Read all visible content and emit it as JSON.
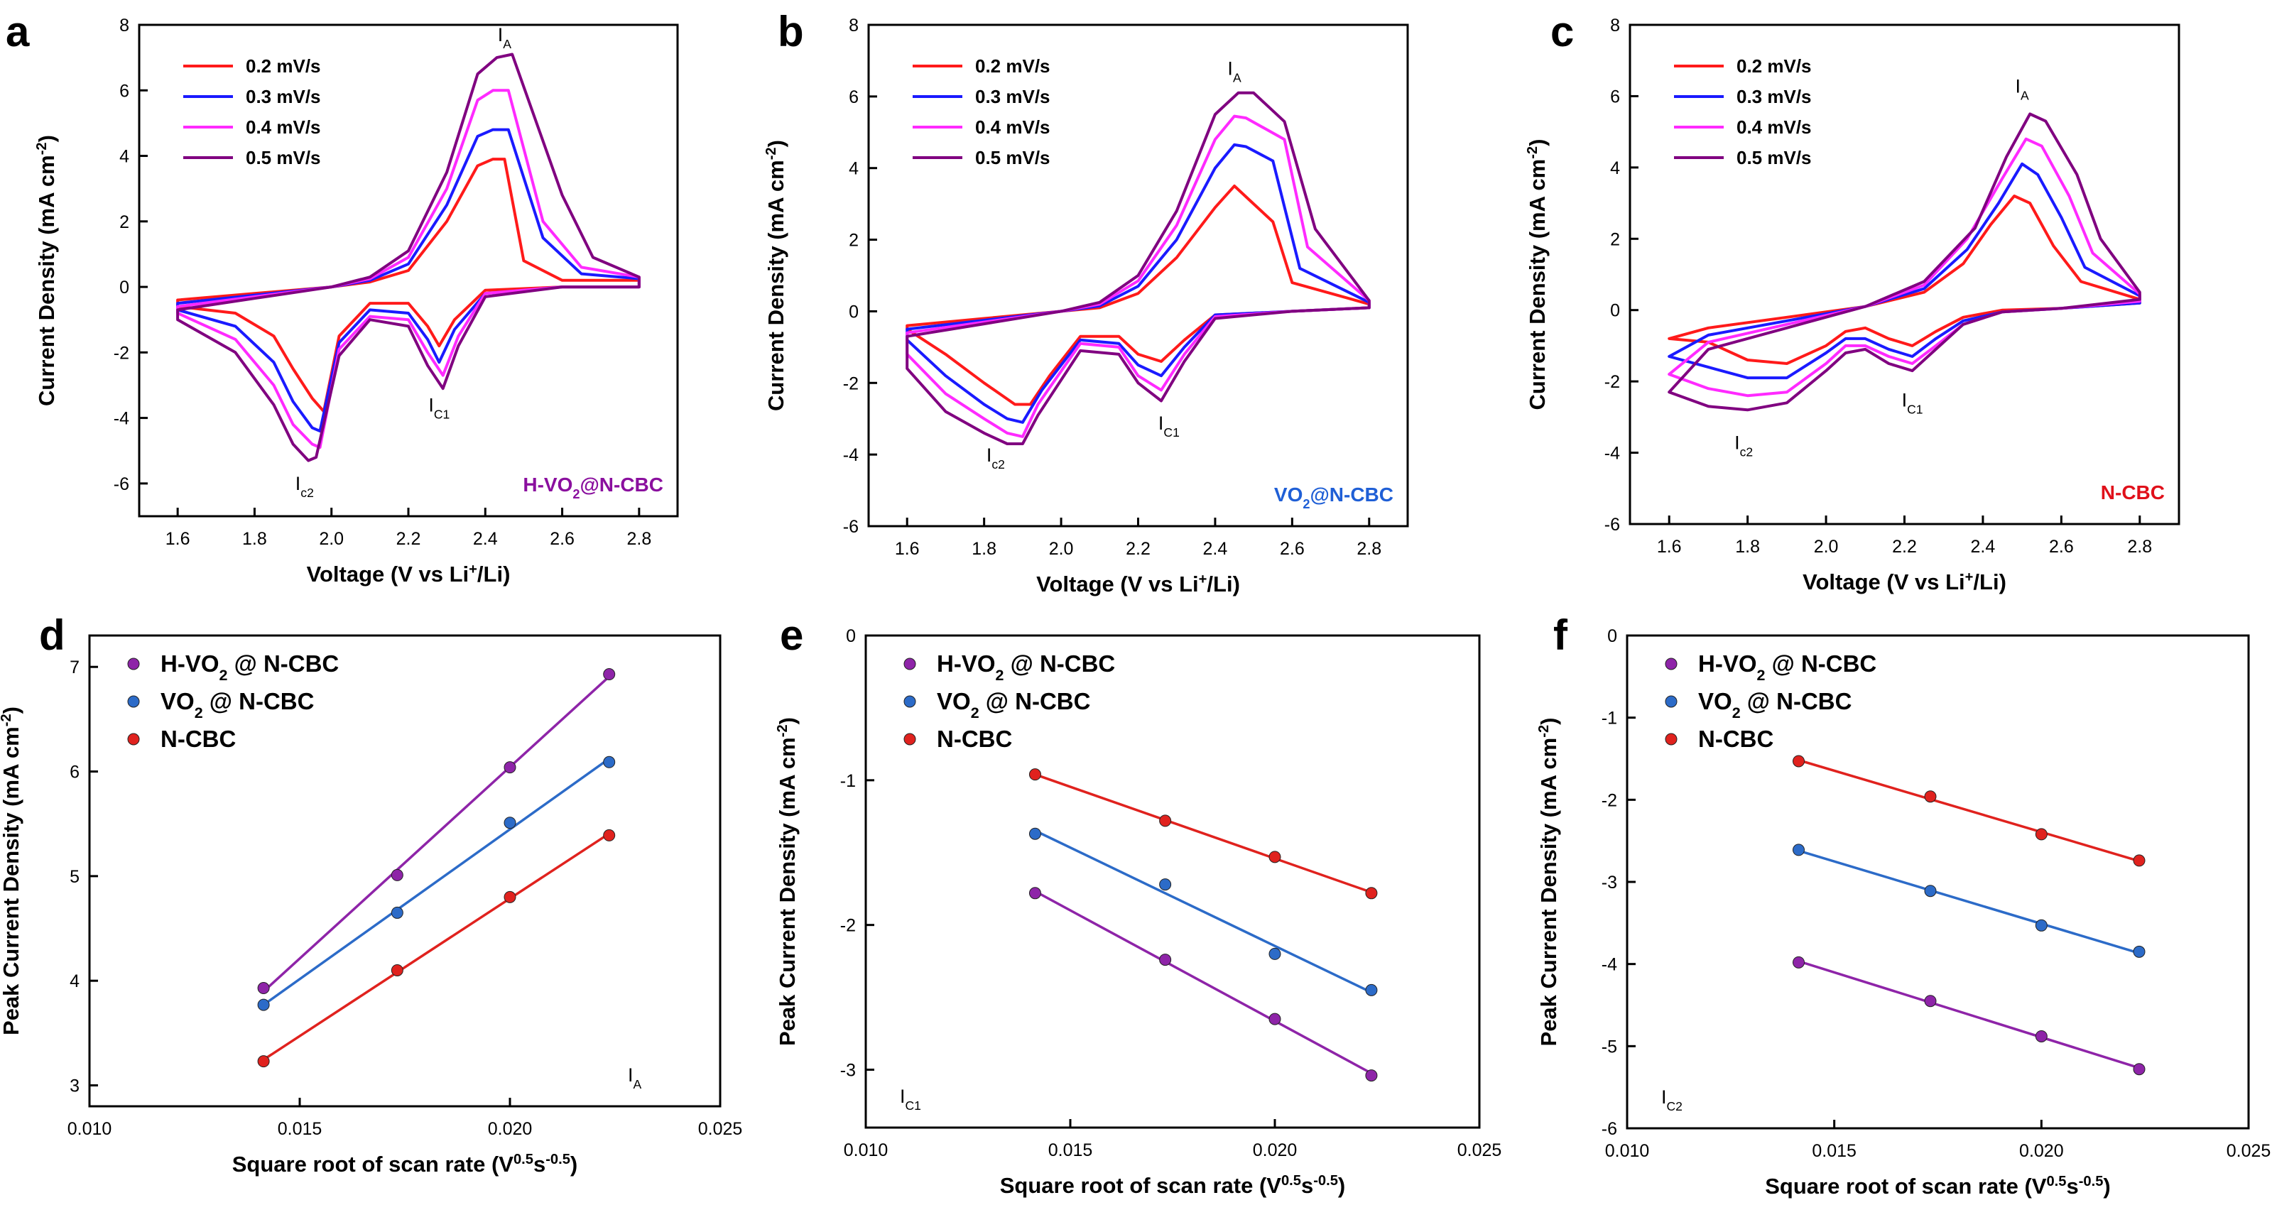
{
  "colors": {
    "scan_0_2": "#ff1a1a",
    "scan_0_3": "#1a1aff",
    "scan_0_4": "#ff2aff",
    "scan_0_5": "#800080",
    "h_vo2": "#8e24a8",
    "vo2": "#2c6bc8",
    "ncbc": "#e0221e",
    "h_vo2_tag": "#8a0f9e",
    "vo2_tag": "#1f5fd6",
    "ncbc_tag": "#e0101a"
  },
  "chart_data": [
    {
      "panel": "a",
      "type": "line",
      "xlabel": "Voltage (V vs Li+/Li)",
      "ylabel": "Current Density (mA cm-2)",
      "xlim": [
        1.5,
        2.9
      ],
      "ylim": [
        -7,
        8
      ],
      "xticks": [
        "1.6",
        "1.8",
        "2.0",
        "2.2",
        "2.4",
        "2.6",
        "2.8"
      ],
      "yticks": [
        "-6",
        "-4",
        "-2",
        "0",
        "2",
        "4",
        "6",
        "8"
      ],
      "legend": [
        "0.2 mV/s",
        "0.3 mV/s",
        "0.4 mV/s",
        "0.5 mV/s"
      ],
      "tag": "H-VO2@N-CBC",
      "peaks": [
        {
          "label": "I",
          "sub": "A",
          "x": 2.45,
          "y": 7.5
        },
        {
          "label": "I",
          "sub": "C1",
          "x": 2.28,
          "y": -3.8
        },
        {
          "label": "I",
          "sub": "c2",
          "x": 1.93,
          "y": -6.2
        }
      ],
      "series": [
        {
          "name": "0.2 mV/s",
          "x": [
            1.6,
            1.75,
            1.85,
            1.9,
            1.95,
            1.98,
            2.02,
            2.1,
            2.2,
            2.25,
            2.28,
            2.32,
            2.4,
            2.6,
            2.8,
            2.8,
            2.6,
            2.5,
            2.45,
            2.42,
            2.38,
            2.3,
            2.2,
            2.1,
            2.0,
            1.8,
            1.6
          ],
          "y": [
            -0.6,
            -0.8,
            -1.5,
            -2.5,
            -3.4,
            -3.8,
            -1.5,
            -0.5,
            -0.5,
            -1.2,
            -1.8,
            -1.0,
            -0.1,
            0,
            0,
            0.2,
            0.2,
            0.8,
            3.9,
            3.9,
            3.7,
            2.0,
            0.5,
            0.15,
            0,
            -0.2,
            -0.4
          ]
        },
        {
          "name": "0.3 mV/s",
          "x": [
            1.6,
            1.75,
            1.85,
            1.9,
            1.95,
            1.97,
            2.02,
            2.1,
            2.2,
            2.25,
            2.28,
            2.32,
            2.4,
            2.6,
            2.8,
            2.8,
            2.65,
            2.55,
            2.46,
            2.42,
            2.38,
            2.3,
            2.2,
            2.1,
            2.0,
            1.8,
            1.6
          ],
          "y": [
            -0.7,
            -1.2,
            -2.3,
            -3.5,
            -4.3,
            -4.4,
            -1.7,
            -0.7,
            -0.8,
            -1.6,
            -2.3,
            -1.3,
            -0.2,
            0,
            0,
            0.25,
            0.4,
            1.5,
            4.8,
            4.8,
            4.6,
            2.5,
            0.7,
            0.2,
            0,
            -0.25,
            -0.5
          ]
        },
        {
          "name": "0.4 mV/s",
          "x": [
            1.6,
            1.75,
            1.85,
            1.9,
            1.95,
            1.97,
            2.02,
            2.1,
            2.2,
            2.25,
            2.29,
            2.33,
            2.4,
            2.6,
            2.8,
            2.8,
            2.65,
            2.55,
            2.46,
            2.42,
            2.38,
            2.3,
            2.2,
            2.1,
            2.0,
            1.8,
            1.6
          ],
          "y": [
            -0.8,
            -1.6,
            -3.0,
            -4.2,
            -4.8,
            -4.9,
            -1.9,
            -0.9,
            -1.0,
            -2.0,
            -2.7,
            -1.5,
            -0.2,
            0,
            0,
            0.3,
            0.6,
            2.0,
            6.0,
            6.0,
            5.7,
            3.0,
            0.9,
            0.25,
            0,
            -0.3,
            -0.6
          ]
        },
        {
          "name": "0.5 mV/s",
          "x": [
            1.6,
            1.75,
            1.85,
            1.9,
            1.94,
            1.96,
            2.02,
            2.1,
            2.2,
            2.25,
            2.29,
            2.33,
            2.4,
            2.6,
            2.8,
            2.8,
            2.68,
            2.6,
            2.47,
            2.43,
            2.38,
            2.3,
            2.2,
            2.1,
            2.0,
            1.8,
            1.6
          ],
          "y": [
            -1.0,
            -2.0,
            -3.6,
            -4.8,
            -5.3,
            -5.2,
            -2.1,
            -1.0,
            -1.2,
            -2.4,
            -3.1,
            -1.8,
            -0.3,
            0,
            0,
            0.3,
            0.9,
            2.8,
            7.1,
            7.0,
            6.5,
            3.5,
            1.1,
            0.3,
            0,
            -0.35,
            -0.7
          ]
        }
      ]
    },
    {
      "panel": "b",
      "type": "line",
      "xlabel": "Voltage (V vs Li+/Li)",
      "ylabel": "Current Density (mA cm-2)",
      "xlim": [
        1.5,
        2.9
      ],
      "ylim": [
        -6,
        8
      ],
      "xticks": [
        "1.6",
        "1.8",
        "2.0",
        "2.2",
        "2.4",
        "2.6",
        "2.8"
      ],
      "yticks": [
        "-6",
        "-4",
        "-2",
        "0",
        "2",
        "4",
        "6",
        "8"
      ],
      "legend": [
        "0.2 mV/s",
        "0.3 mV/s",
        "0.4 mV/s",
        "0.5 mV/s"
      ],
      "tag": "VO2@N-CBC",
      "peaks": [
        {
          "label": "I",
          "sub": "A",
          "x": 2.45,
          "y": 6.6
        },
        {
          "label": "I",
          "sub": "C1",
          "x": 2.28,
          "y": -3.3
        },
        {
          "label": "I",
          "sub": "c2",
          "x": 1.83,
          "y": -4.2
        }
      ],
      "series": [
        {
          "name": "0.2 mV/s",
          "x": [
            1.6,
            1.7,
            1.8,
            1.88,
            1.92,
            1.97,
            2.05,
            2.15,
            2.2,
            2.26,
            2.32,
            2.4,
            2.6,
            2.8,
            2.8,
            2.6,
            2.55,
            2.5,
            2.45,
            2.4,
            2.3,
            2.2,
            2.1,
            2.0,
            1.8,
            1.6
          ],
          "y": [
            -0.5,
            -1.2,
            -2.0,
            -2.6,
            -2.6,
            -1.8,
            -0.7,
            -0.7,
            -1.2,
            -1.4,
            -0.8,
            -0.1,
            0,
            0.1,
            0.2,
            0.8,
            2.5,
            3.0,
            3.5,
            2.9,
            1.5,
            0.5,
            0.1,
            0,
            -0.2,
            -0.4
          ]
        },
        {
          "name": "0.3 mV/s",
          "x": [
            1.6,
            1.7,
            1.8,
            1.86,
            1.9,
            1.95,
            2.05,
            2.15,
            2.2,
            2.26,
            2.32,
            2.4,
            2.6,
            2.8,
            2.8,
            2.62,
            2.55,
            2.48,
            2.45,
            2.4,
            2.3,
            2.2,
            2.1,
            2.0,
            1.8,
            1.6
          ],
          "y": [
            -0.8,
            -1.8,
            -2.6,
            -3.0,
            -3.1,
            -2.2,
            -0.8,
            -0.9,
            -1.5,
            -1.8,
            -1.0,
            -0.1,
            0,
            0.1,
            0.25,
            1.2,
            4.2,
            4.6,
            4.65,
            4.0,
            2.0,
            0.7,
            0.15,
            0,
            -0.25,
            -0.5
          ]
        },
        {
          "name": "0.4 mV/s",
          "x": [
            1.6,
            1.7,
            1.8,
            1.86,
            1.9,
            1.94,
            2.05,
            2.15,
            2.2,
            2.26,
            2.32,
            2.4,
            2.6,
            2.8,
            2.8,
            2.64,
            2.58,
            2.48,
            2.45,
            2.4,
            2.3,
            2.2,
            2.1,
            2.0,
            1.8,
            1.6
          ],
          "y": [
            -1.2,
            -2.3,
            -3.0,
            -3.4,
            -3.5,
            -2.6,
            -0.9,
            -1.0,
            -1.8,
            -2.2,
            -1.2,
            -0.15,
            0,
            0.1,
            0.3,
            1.8,
            4.8,
            5.4,
            5.45,
            4.8,
            2.4,
            0.85,
            0.2,
            0,
            -0.3,
            -0.6
          ]
        },
        {
          "name": "0.5 mV/s",
          "x": [
            1.6,
            1.7,
            1.8,
            1.86,
            1.9,
            1.94,
            2.05,
            2.15,
            2.2,
            2.26,
            2.32,
            2.4,
            2.6,
            2.8,
            2.8,
            2.66,
            2.58,
            2.5,
            2.46,
            2.4,
            2.3,
            2.2,
            2.1,
            2.0,
            1.8,
            1.6
          ],
          "y": [
            -1.6,
            -2.8,
            -3.4,
            -3.7,
            -3.7,
            -2.9,
            -1.1,
            -1.2,
            -2.0,
            -2.5,
            -1.4,
            -0.2,
            0,
            0.1,
            0.3,
            2.3,
            5.3,
            6.1,
            6.1,
            5.5,
            2.8,
            1.0,
            0.25,
            0,
            -0.35,
            -0.7
          ]
        }
      ]
    },
    {
      "panel": "c",
      "type": "line",
      "xlabel": "Voltage (V vs Li+/Li)",
      "ylabel": "Current Density (mA cm-2)",
      "xlim": [
        1.5,
        2.9
      ],
      "ylim": [
        -6,
        8
      ],
      "xticks": [
        "1.6",
        "1.8",
        "2.0",
        "2.2",
        "2.4",
        "2.6",
        "2.8"
      ],
      "yticks": [
        "-6",
        "-4",
        "-2",
        "0",
        "2",
        "4",
        "6",
        "8"
      ],
      "legend": [
        "0.2 mV/s",
        "0.3 mV/s",
        "0.4 mV/s",
        "0.5 mV/s"
      ],
      "tag": "N-CBC",
      "peaks": [
        {
          "label": "I",
          "sub": "A",
          "x": 2.5,
          "y": 6.1
        },
        {
          "label": "I",
          "sub": "C1",
          "x": 2.22,
          "y": -2.7
        },
        {
          "label": "I",
          "sub": "c2",
          "x": 1.79,
          "y": -3.9
        }
      ],
      "series": [
        {
          "name": "0.2 mV/s",
          "x": [
            1.6,
            1.7,
            1.8,
            1.9,
            2.0,
            2.05,
            2.1,
            2.16,
            2.22,
            2.28,
            2.35,
            2.45,
            2.6,
            2.8,
            2.8,
            2.65,
            2.58,
            2.52,
            2.48,
            2.42,
            2.35,
            2.25,
            2.1,
            1.9,
            1.7,
            1.6
          ],
          "y": [
            -0.8,
            -0.9,
            -1.4,
            -1.5,
            -1.0,
            -0.6,
            -0.5,
            -0.8,
            -1.0,
            -0.6,
            -0.2,
            0,
            0.05,
            0.2,
            0.3,
            0.8,
            1.8,
            3.0,
            3.2,
            2.4,
            1.3,
            0.5,
            0.1,
            -0.2,
            -0.5,
            -0.8
          ]
        },
        {
          "name": "0.3 mV/s",
          "x": [
            1.6,
            1.7,
            1.8,
            1.9,
            2.0,
            2.05,
            2.1,
            2.16,
            2.22,
            2.28,
            2.35,
            2.45,
            2.6,
            2.8,
            2.8,
            2.66,
            2.6,
            2.54,
            2.5,
            2.44,
            2.36,
            2.25,
            2.1,
            1.9,
            1.7,
            1.6
          ],
          "y": [
            -1.3,
            -1.6,
            -1.9,
            -1.9,
            -1.2,
            -0.8,
            -0.8,
            -1.1,
            -1.3,
            -0.8,
            -0.3,
            -0.05,
            0.05,
            0.2,
            0.4,
            1.2,
            2.6,
            3.8,
            4.1,
            3.0,
            1.7,
            0.6,
            0.1,
            -0.3,
            -0.7,
            -1.3
          ]
        },
        {
          "name": "0.4 mV/s",
          "x": [
            1.6,
            1.7,
            1.8,
            1.9,
            2.0,
            2.05,
            2.1,
            2.16,
            2.22,
            2.28,
            2.35,
            2.45,
            2.6,
            2.8,
            2.8,
            2.68,
            2.62,
            2.55,
            2.51,
            2.45,
            2.36,
            2.25,
            2.1,
            1.9,
            1.7,
            1.6
          ],
          "y": [
            -1.8,
            -2.2,
            -2.4,
            -2.3,
            -1.5,
            -1.0,
            -1.0,
            -1.3,
            -1.5,
            -1.0,
            -0.4,
            -0.05,
            0.05,
            0.25,
            0.45,
            1.6,
            3.2,
            4.6,
            4.8,
            3.7,
            2.0,
            0.7,
            0.1,
            -0.4,
            -0.9,
            -1.8
          ]
        },
        {
          "name": "0.5 mV/s",
          "x": [
            1.6,
            1.7,
            1.8,
            1.9,
            2.0,
            2.05,
            2.1,
            2.16,
            2.22,
            2.28,
            2.35,
            2.45,
            2.6,
            2.8,
            2.8,
            2.7,
            2.64,
            2.56,
            2.52,
            2.46,
            2.38,
            2.25,
            2.1,
            1.9,
            1.7,
            1.6
          ],
          "y": [
            -2.3,
            -2.7,
            -2.8,
            -2.6,
            -1.7,
            -1.2,
            -1.1,
            -1.5,
            -1.7,
            -1.1,
            -0.4,
            -0.05,
            0.05,
            0.3,
            0.5,
            2.0,
            3.8,
            5.3,
            5.5,
            4.3,
            2.3,
            0.8,
            0.1,
            -0.5,
            -1.1,
            -2.3
          ]
        }
      ]
    },
    {
      "panel": "d",
      "type": "scatter",
      "xlabel": "Square root of scan rate (V0.5s-0.5)",
      "ylabel": "Peak Current Density (mA cm-2)",
      "xlim": [
        0.01,
        0.025
      ],
      "ylim": [
        2.8,
        7.3
      ],
      "xticks": [
        "0.010",
        "0.015",
        "0.020",
        "0.025"
      ],
      "yticks": [
        "3",
        "4",
        "5",
        "6",
        "7"
      ],
      "corner": {
        "label": "I",
        "sub": "A"
      },
      "legend": [
        "H-VO2 @ N-CBC",
        "VO2 @ N-CBC",
        "N-CBC"
      ],
      "x": [
        0.01414,
        0.01732,
        0.02,
        0.02236
      ],
      "series": [
        {
          "name": "H-VO2 @ N-CBC",
          "values": [
            3.93,
            5.01,
            6.04,
            6.93
          ]
        },
        {
          "name": "VO2 @ N-CBC",
          "values": [
            3.77,
            4.65,
            5.51,
            6.09
          ]
        },
        {
          "name": "N-CBC",
          "values": [
            3.23,
            4.1,
            4.8,
            5.39
          ]
        }
      ]
    },
    {
      "panel": "e",
      "type": "scatter",
      "xlabel": "Square root of scan rate (V0.5s-0.5)",
      "ylabel": "Peak Current Density (mA cm-2)",
      "xlim": [
        0.01,
        0.025
      ],
      "ylim": [
        -3.4,
        0
      ],
      "xticks": [
        "0.010",
        "0.015",
        "0.020",
        "0.025"
      ],
      "yticks": [
        "-3",
        "-2",
        "-1",
        "0"
      ],
      "corner": {
        "label": "I",
        "sub": "C1"
      },
      "legend": [
        "H-VO2 @ N-CBC",
        "VO2 @ N-CBC",
        "N-CBC"
      ],
      "x": [
        0.01414,
        0.01732,
        0.02,
        0.02236
      ],
      "series": [
        {
          "name": "H-VO2 @ N-CBC",
          "values": [
            -1.78,
            -2.24,
            -2.65,
            -3.04
          ]
        },
        {
          "name": "VO2 @ N-CBC",
          "values": [
            -1.37,
            -1.72,
            -2.2,
            -2.45
          ]
        },
        {
          "name": "N-CBC",
          "values": [
            -0.96,
            -1.28,
            -1.53,
            -1.78
          ]
        }
      ]
    },
    {
      "panel": "f",
      "type": "scatter",
      "xlabel": "Square root of scan rate (V0.5s-0.5)",
      "ylabel": "Peak Current Density (mA cm-2)",
      "xlim": [
        0.01,
        0.025
      ],
      "ylim": [
        -6,
        0
      ],
      "xticks": [
        "0.010",
        "0.015",
        "0.020",
        "0.025"
      ],
      "yticks": [
        "-6",
        "-5",
        "-4",
        "-3",
        "-2",
        "-1",
        "0"
      ],
      "corner": {
        "label": "I",
        "sub": "C2"
      },
      "legend": [
        "H-VO2 @ N-CBC",
        "VO2 @ N-CBC",
        "N-CBC"
      ],
      "x": [
        0.01414,
        0.01732,
        0.02,
        0.02236
      ],
      "series": [
        {
          "name": "H-VO2 @ N-CBC",
          "values": [
            -3.98,
            -4.45,
            -4.88,
            -5.28
          ]
        },
        {
          "name": "VO2 @ N-CBC",
          "values": [
            -2.61,
            -3.11,
            -3.53,
            -3.85
          ]
        },
        {
          "name": "N-CBC",
          "values": [
            -1.53,
            -1.96,
            -2.42,
            -2.74
          ]
        }
      ]
    }
  ]
}
